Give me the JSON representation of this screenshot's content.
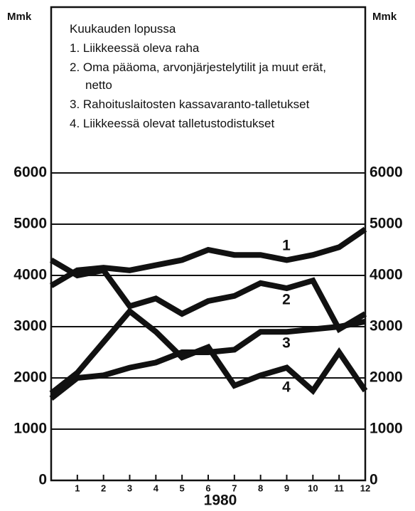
{
  "chart_data": {
    "type": "line",
    "legend_title": "Kuukauden lopussa",
    "y_unit_left": "Mmk",
    "y_unit_right": "Mmk",
    "xlabel": "1980",
    "x": [
      0,
      1,
      2,
      3,
      4,
      5,
      6,
      7,
      8,
      9,
      10,
      11,
      12
    ],
    "xlim": [
      0,
      12
    ],
    "xticks": [
      1,
      2,
      3,
      4,
      5,
      6,
      7,
      8,
      9,
      10,
      11,
      12
    ],
    "ylim": [
      0,
      6000
    ],
    "yticks": [
      0,
      1000,
      2000,
      3000,
      4000,
      5000,
      6000
    ],
    "y2lim": [
      0,
      6000
    ],
    "y2ticks": [
      0,
      1000,
      2000,
      3000,
      4000,
      5000,
      6000
    ],
    "grid": true,
    "series": [
      {
        "name": "1. Liikkeessä oleva raha",
        "label": "1",
        "color": "#111111",
        "values": [
          3800,
          4100,
          4150,
          4100,
          4200,
          4300,
          4500,
          4400,
          4400,
          4300,
          4400,
          4550,
          4900
        ]
      },
      {
        "name": "2. Oma pääoma, arvonjärjestelytilit ja muut erät, netto",
        "label": "2",
        "color": "#111111",
        "values": [
          4300,
          4000,
          4100,
          3400,
          3550,
          3250,
          3500,
          3600,
          3850,
          3750,
          3900,
          2950,
          3250
        ]
      },
      {
        "name": "3. Rahoituslaitosten kassavaranto-talletukset",
        "label": "3",
        "color": "#111111",
        "values": [
          1600,
          2000,
          2050,
          2200,
          2300,
          2500,
          2500,
          2550,
          2900,
          2900,
          2950,
          3000,
          3100
        ]
      },
      {
        "name": "4. Liikkeessä olevat talletustodistukset",
        "label": "4",
        "color": "#111111",
        "values": [
          1700,
          2100,
          2700,
          3300,
          2900,
          2400,
          2600,
          1850,
          2050,
          2200,
          1750,
          2500,
          1750
        ]
      }
    ]
  }
}
